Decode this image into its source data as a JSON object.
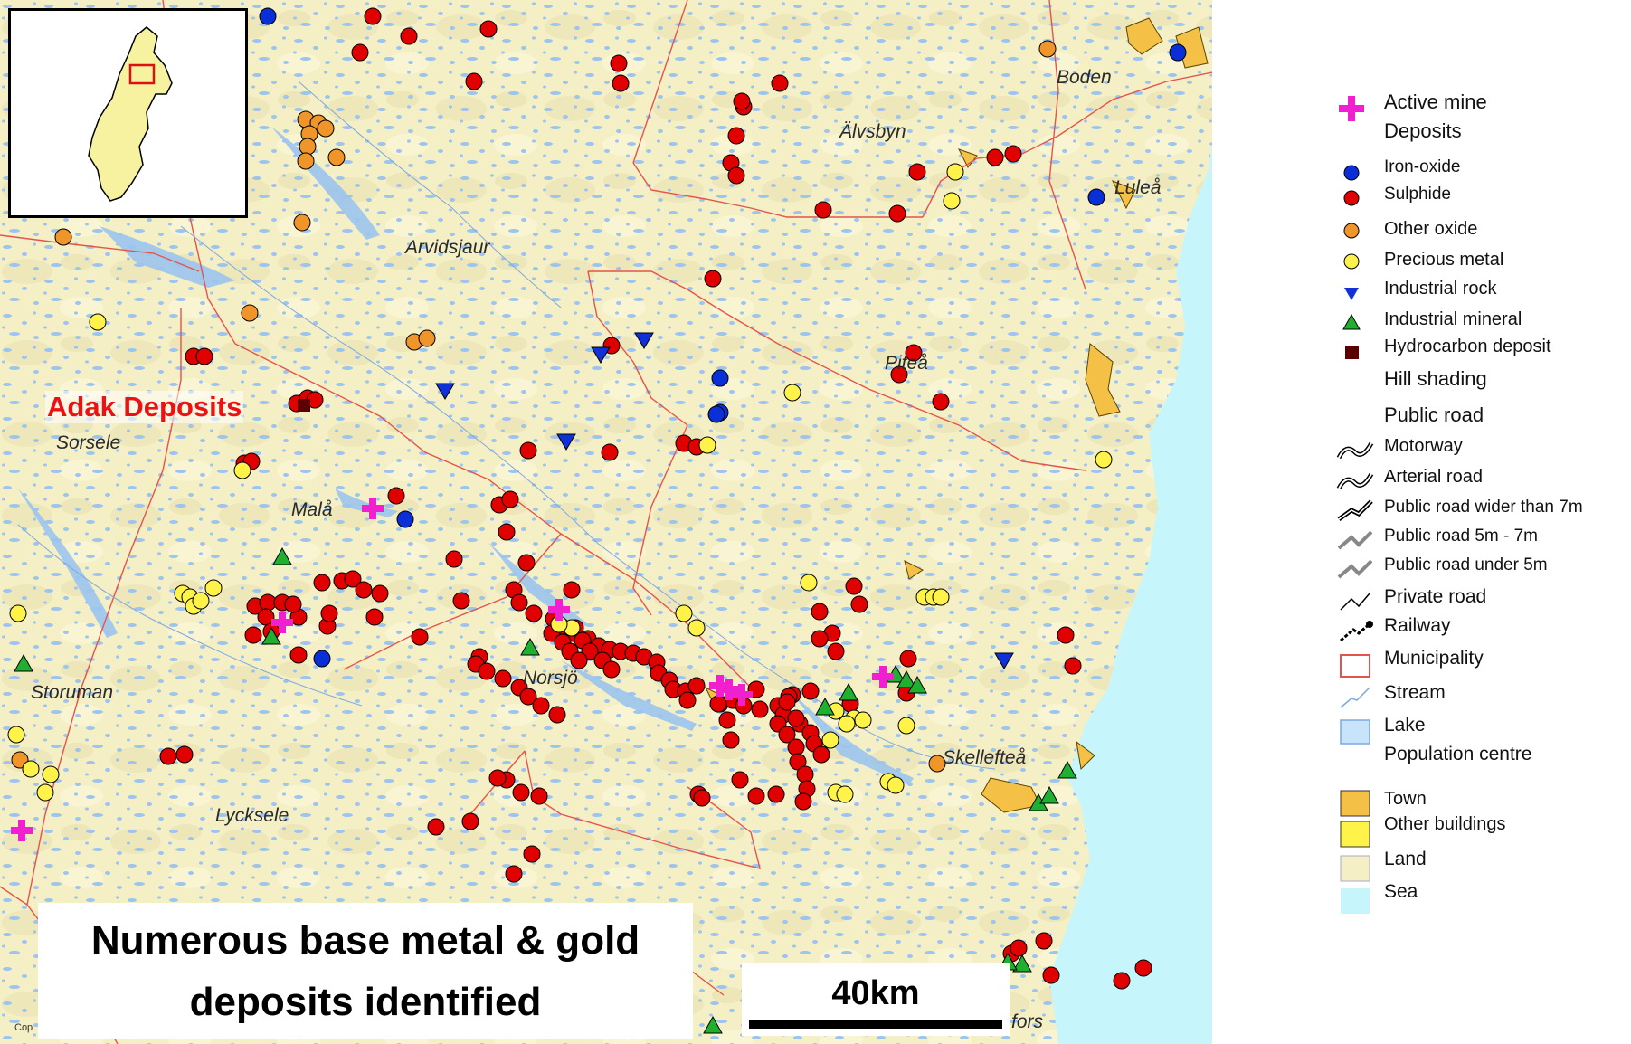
{
  "map": {
    "place_labels": [
      "Boden",
      "Älvsbyn",
      "Luleå",
      "Arvidsjaur",
      "Piteå",
      "Sorsele",
      "Malå",
      "Storuman",
      "Norsjö",
      "Skellefteå",
      "Lycksele",
      "fors"
    ],
    "callout": "Adak Deposits",
    "caption_line1": "Numerous base metal & gold",
    "caption_line2": "deposits identified",
    "scale_label": "40km",
    "copyright_fragment": "Cop",
    "colors": {
      "land": "#f4efc4",
      "sea": "#c6f6fb",
      "lake": "#9cc4ee",
      "municipality_border": "#e4544c",
      "town": "#f5c046",
      "sulphide": "#e00000",
      "iron_oxide": "#0a2fd8",
      "other_oxide": "#f0952a",
      "precious_metal": "#fff34a",
      "industrial_rock": "#1030d8",
      "industrial_mineral": "#20b030",
      "active_mine": "#f020d0"
    }
  },
  "legend": {
    "items": [
      {
        "label": "Active mine",
        "symbol": "active-mine-cross"
      },
      {
        "label": "Deposits",
        "symbol": "none"
      },
      {
        "label": "Iron-oxide",
        "symbol": "blue-circle"
      },
      {
        "label": "Sulphide",
        "symbol": "red-circle"
      },
      {
        "label": "Other oxide",
        "symbol": "orange-circle"
      },
      {
        "label": "Precious metal",
        "symbol": "yellow-circle"
      },
      {
        "label": "Industrial rock",
        "symbol": "blue-down-triangle"
      },
      {
        "label": "Industrial mineral",
        "symbol": "green-triangle"
      },
      {
        "label": "Hydrocarbon deposit",
        "symbol": "brown-square"
      },
      {
        "label": "Hill shading",
        "symbol": "none"
      },
      {
        "label": "Public road",
        "symbol": "none"
      },
      {
        "label": "Motorway",
        "symbol": "road-line"
      },
      {
        "label": "Arterial road",
        "symbol": "road-line"
      },
      {
        "label": "Public road wider than 7m",
        "symbol": "road-line"
      },
      {
        "label": "Public road 5m - 7m",
        "symbol": "road-line-grey"
      },
      {
        "label": "Public road under 5m",
        "symbol": "road-line-grey"
      },
      {
        "label": "Private road",
        "symbol": "thin-line"
      },
      {
        "label": "Railway",
        "symbol": "railway-line"
      },
      {
        "label": "Municipality",
        "symbol": "red-outline-box"
      },
      {
        "label": "Stream",
        "symbol": "blue-line"
      },
      {
        "label": "Lake",
        "symbol": "lake-box"
      },
      {
        "label": "Population centre",
        "symbol": "none"
      },
      {
        "label": "Town",
        "symbol": "town-box"
      },
      {
        "label": "Other buildings",
        "symbol": "yellow-box"
      },
      {
        "label": "Land",
        "symbol": "land-box"
      },
      {
        "label": "Sea",
        "symbol": "sea-box"
      }
    ]
  }
}
